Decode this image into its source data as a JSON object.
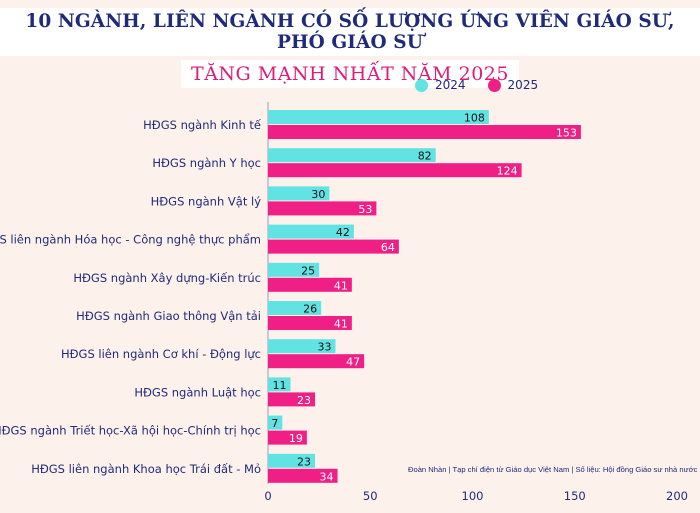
{
  "title_line1": "10 NGÀNH, LIÊN NGÀNH CÓ SỐ LƯỢNG ỨNG VIÊN GIÁO SƯ, PHÓ GIÁO SƯ",
  "title_line2": "TĂNG MẠNH NHẤT NĂM 2025",
  "footnote": "Đoàn Nhàn | Tạp chí điện tử Giáo dục Việt Nam | Số liệu: Hội đồng Giáo sư nhà nước",
  "colors": {
    "2024": "#62e3e3",
    "2025": "#ef1f86",
    "text": "#1f2b7a"
  },
  "chart_data": {
    "type": "bar",
    "orientation": "horizontal",
    "categories": [
      "HĐGS ngành Kinh tế",
      "HĐGS ngành Y học",
      "HĐGS ngành Vật lý",
      "HĐGS liên ngành Hóa học - Công nghệ thực phẩm",
      "HĐGS ngành Xây dựng-Kiến trúc",
      "HĐGS ngành Giao thông Vận tải",
      "HĐGS liên ngành Cơ khí - Động lực",
      "HĐGS ngành Luật học",
      "HĐGS ngành Triết học-Xã hội học-Chính trị học",
      "HĐGS liên ngành Khoa học Trái đất - Mỏ"
    ],
    "series": [
      {
        "name": "2024",
        "values": [
          108,
          82,
          30,
          42,
          25,
          26,
          33,
          11,
          7,
          23
        ]
      },
      {
        "name": "2025",
        "values": [
          153,
          124,
          53,
          64,
          41,
          41,
          47,
          23,
          19,
          34
        ]
      }
    ],
    "xlim": [
      0,
      200
    ],
    "xticks": [
      0,
      50,
      100,
      150,
      200
    ],
    "legend_position": "top-right",
    "grid": false
  }
}
